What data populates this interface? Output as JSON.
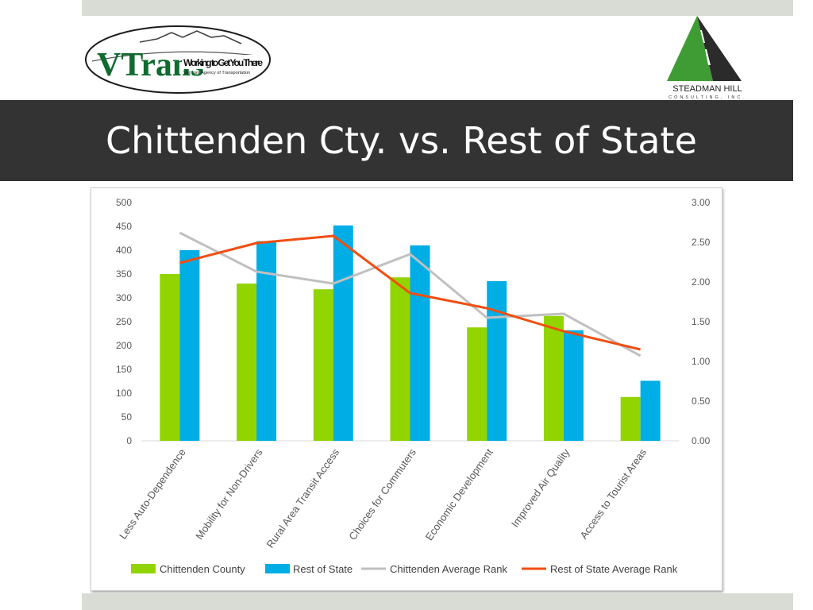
{
  "header": {
    "title": "Chittenden Cty. vs. Rest of State",
    "logo_left": {
      "wordmark": "VTrans",
      "tagline": "Working to Get You There",
      "subtitle": "Vermont Agency of Transportation"
    },
    "logo_right": {
      "name": "STEADMAN HILL",
      "subtitle": "CONSULTING, INC."
    }
  },
  "colors": {
    "band": "#333333",
    "strip": "#d9dcd4",
    "chittenden_county": "#92d400",
    "rest_of_state": "#00aee5",
    "chittenden_avg_rank": "#c0c0c0",
    "rest_avg_rank": "#f04e12"
  },
  "chart_data": {
    "type": "bar",
    "categories": [
      "Less Auto-Dependence",
      "Mobility for Non-Drivers",
      "Rural Area Transit Access",
      "Choices for Commuters",
      "Economic Development",
      "Improved Air Quality",
      "Access to Tourist Areas"
    ],
    "series": [
      {
        "name": "Chittenden County",
        "type": "bar",
        "axis": "left",
        "values": [
          350,
          330,
          318,
          343,
          238,
          262,
          92
        ]
      },
      {
        "name": "Rest of State",
        "type": "bar",
        "axis": "left",
        "values": [
          400,
          419,
          452,
          410,
          335,
          232,
          126
        ]
      },
      {
        "name": "Chittenden Average Rank",
        "type": "line",
        "axis": "right",
        "values": [
          2.62,
          2.13,
          1.98,
          2.35,
          1.55,
          1.6,
          1.07
        ]
      },
      {
        "name": "Rest of State Average Rank",
        "type": "line",
        "axis": "right",
        "values": [
          2.24,
          2.49,
          2.58,
          1.86,
          1.67,
          1.38,
          1.15
        ]
      }
    ],
    "y_left": {
      "min": 0,
      "max": 500,
      "ticks": [
        "0",
        "50",
        "100",
        "150",
        "200",
        "250",
        "300",
        "350",
        "400",
        "450",
        "500"
      ]
    },
    "y_right": {
      "min": 0,
      "max": 3,
      "ticks": [
        "0.00",
        "0.50",
        "1.00",
        "1.50",
        "2.00",
        "2.50",
        "3.00"
      ]
    },
    "legend_position": "bottom",
    "grid": false
  }
}
